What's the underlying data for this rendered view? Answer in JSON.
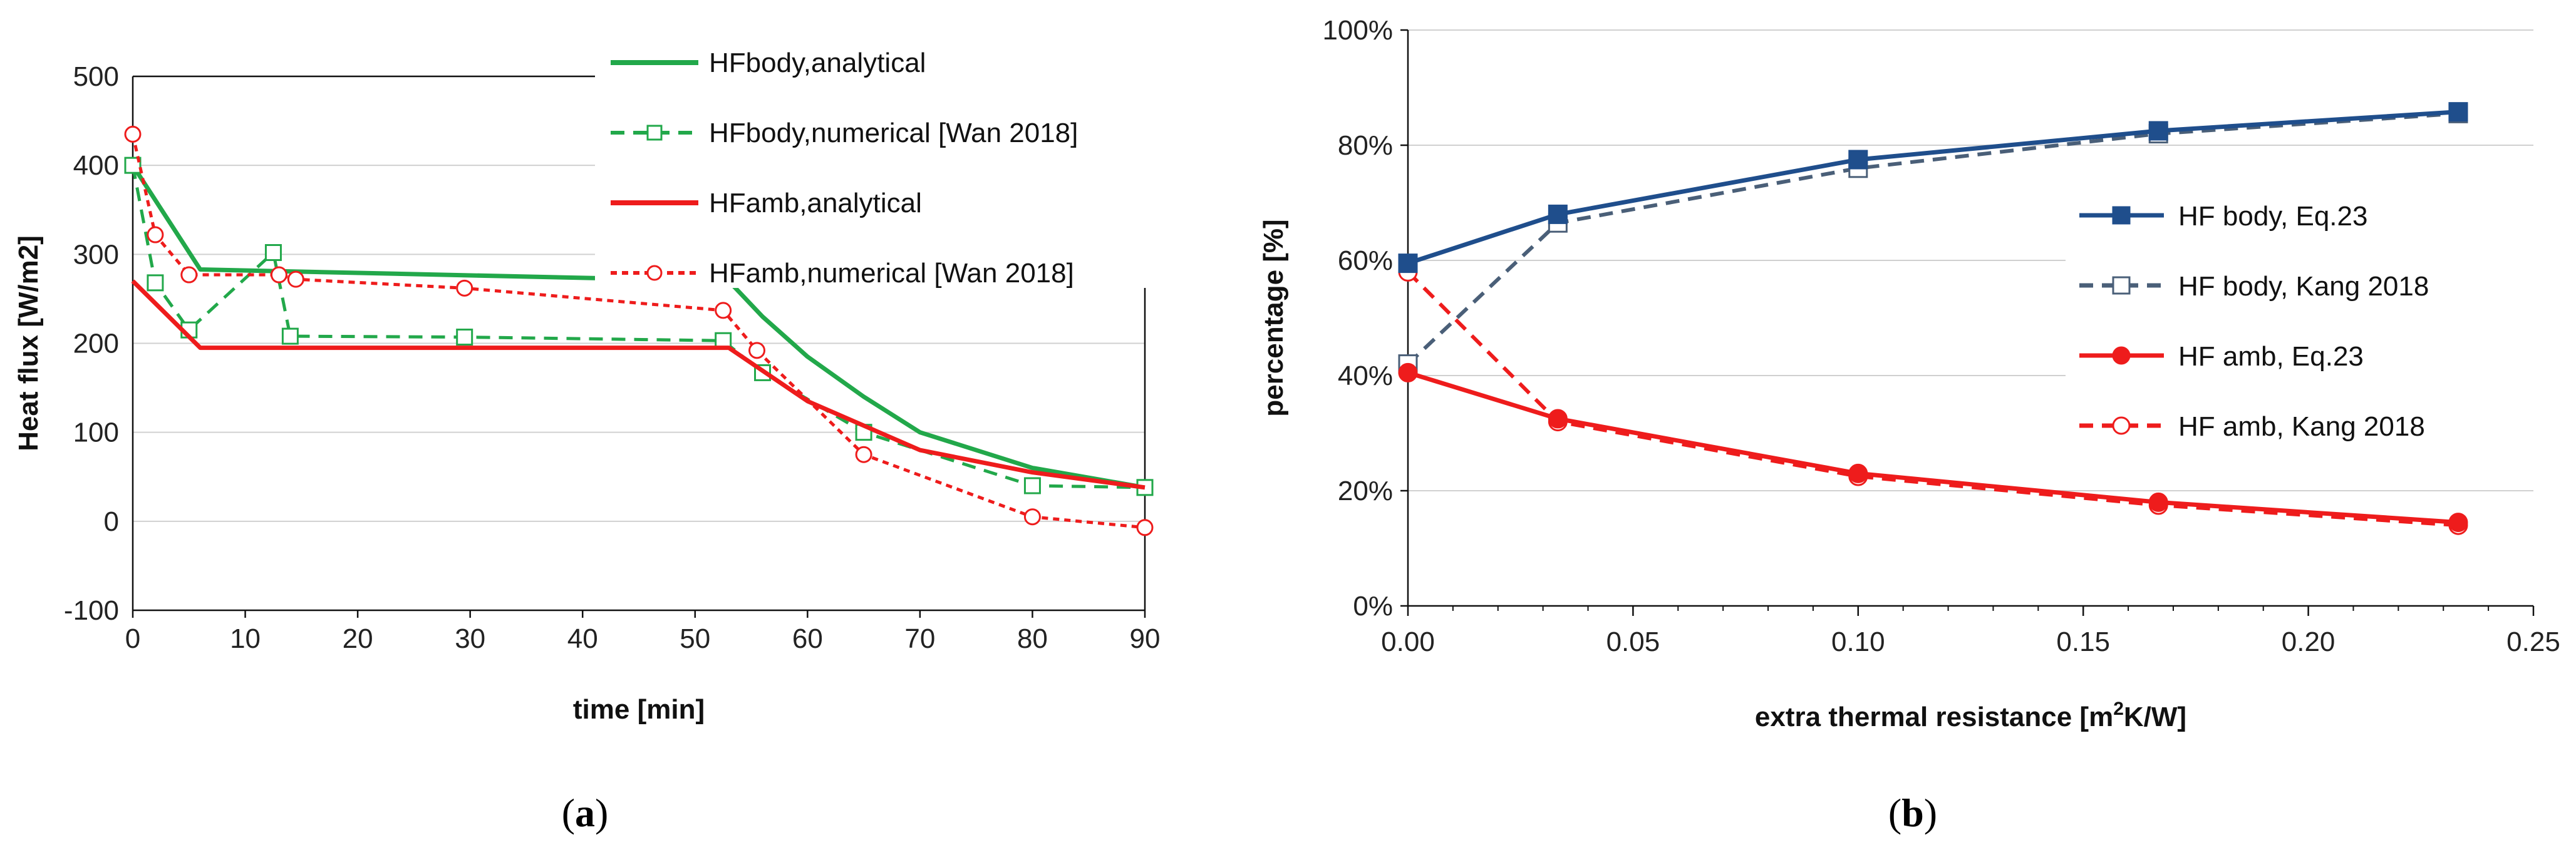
{
  "chart_data": [
    {
      "type": "line",
      "panel_label": "a",
      "xlabel": "time [min]",
      "ylabel": "Heat flux [W/m2]",
      "xlim": [
        0,
        90
      ],
      "ylim": [
        -100,
        500
      ],
      "xticks": [
        "0",
        "10",
        "20",
        "30",
        "40",
        "50",
        "60",
        "70",
        "80",
        "90"
      ],
      "yticks": [
        "-100",
        "0",
        "100",
        "200",
        "300",
        "400",
        "500"
      ],
      "legend_position": "top-right",
      "series": [
        {
          "name": "HFbody,analytical",
          "color": "#22a84a",
          "style": "solid",
          "marker": "none",
          "x": [
            0,
            6,
            53,
            56,
            60,
            65,
            70,
            80,
            90
          ],
          "y": [
            400,
            283,
            270,
            230,
            185,
            140,
            100,
            60,
            38
          ]
        },
        {
          "name": "HFbody,numerical [Wan 2018]",
          "color": "#22a84a",
          "style": "dashed",
          "marker": "square",
          "x": [
            0,
            2,
            5,
            12.5,
            14,
            29.5,
            52.5,
            56,
            65,
            80,
            90
          ],
          "y": [
            400,
            268,
            215,
            302,
            208,
            207,
            203,
            167,
            100,
            40,
            38
          ]
        },
        {
          "name": "HFamb,analytical",
          "color": "#ee1c1c",
          "style": "solid",
          "marker": "none",
          "x": [
            0,
            6,
            53,
            60,
            70,
            80,
            90
          ],
          "y": [
            270,
            195,
            195,
            135,
            80,
            55,
            38
          ]
        },
        {
          "name": "HFamb,numerical [Wan 2018]",
          "color": "#ee1c1c",
          "style": "dotted",
          "marker": "circle",
          "x": [
            0,
            2,
            5,
            13,
            14.5,
            29.5,
            52.5,
            55.5,
            65,
            80,
            90
          ],
          "y": [
            435,
            322,
            277,
            277,
            272,
            262,
            237,
            192,
            75,
            5,
            -7
          ]
        }
      ]
    },
    {
      "type": "line",
      "panel_label": "b",
      "xlabel_main": "extra thermal resistance [m",
      "xlabel_sup": "2",
      "xlabel_tail": "K/W]",
      "ylabel": "percentage [%]",
      "xlim": [
        0,
        0.25
      ],
      "ylim": [
        0,
        100
      ],
      "xticks": [
        "0.00",
        "0.05",
        "0.10",
        "0.15",
        "0.20",
        "0.25"
      ],
      "yticks": [
        "0%",
        "20%",
        "40%",
        "60%",
        "80%",
        "100%"
      ],
      "legend_position": "right",
      "series": [
        {
          "name": "HF body, Eq.23",
          "color": "#1f4e8c",
          "style": "solid",
          "marker": "filled-square",
          "x": [
            0,
            0.0333,
            0.1,
            0.1667,
            0.2333
          ],
          "y": [
            59.5,
            68,
            77.5,
            82.5,
            85.8
          ]
        },
        {
          "name": "HF body, Kang 2018",
          "color": "#4a5f78",
          "style": "dashed",
          "marker": "open-square",
          "x": [
            0,
            0.0333,
            0.1,
            0.1667,
            0.2333
          ],
          "y": [
            42,
            66.5,
            76,
            82,
            85.5
          ]
        },
        {
          "name": "HF amb, Eq.23",
          "color": "#ee1c1c",
          "style": "solid",
          "marker": "filled-circle",
          "x": [
            0,
            0.0333,
            0.1,
            0.1667,
            0.2333
          ],
          "y": [
            40.5,
            32.5,
            23,
            18,
            14.5
          ]
        },
        {
          "name": "HF amb, Kang 2018",
          "color": "#ee1c1c",
          "style": "dashed",
          "marker": "open-circle",
          "x": [
            0,
            0.0333,
            0.1,
            0.1667,
            0.2333
          ],
          "y": [
            58,
            32,
            22.5,
            17.5,
            14
          ]
        }
      ]
    }
  ],
  "captions": {
    "a": "(a)",
    "b": "(b)"
  }
}
